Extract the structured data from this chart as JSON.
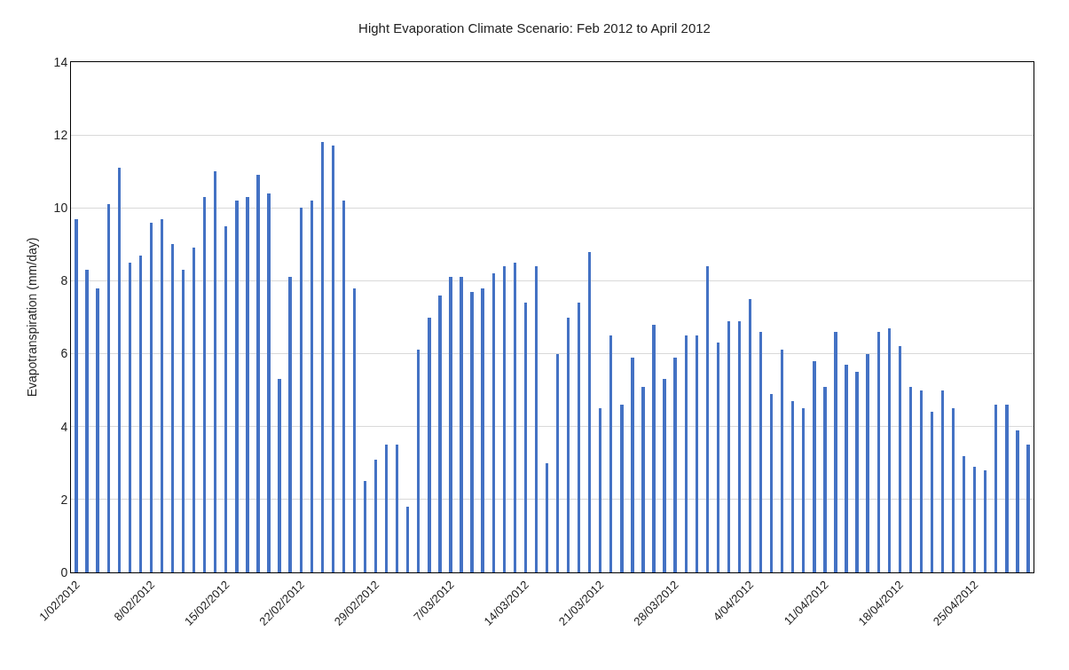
{
  "chart_data": {
    "type": "bar",
    "title": "Hight Evaporation Climate Scenario: Feb 2012 to April 2012",
    "ylabel": "Evapotranspiration (mm/day)",
    "x": [
      "2012-02-01",
      "2012-02-02",
      "2012-02-03",
      "2012-02-04",
      "2012-02-05",
      "2012-02-06",
      "2012-02-07",
      "2012-02-08",
      "2012-02-09",
      "2012-02-10",
      "2012-02-11",
      "2012-02-12",
      "2012-02-13",
      "2012-02-14",
      "2012-02-15",
      "2012-02-16",
      "2012-02-17",
      "2012-02-18",
      "2012-02-19",
      "2012-02-20",
      "2012-02-21",
      "2012-02-22",
      "2012-02-23",
      "2012-02-24",
      "2012-02-25",
      "2012-02-26",
      "2012-02-27",
      "2012-02-28",
      "2012-02-29",
      "2012-03-01",
      "2012-03-02",
      "2012-03-03",
      "2012-03-04",
      "2012-03-05",
      "2012-03-06",
      "2012-03-07",
      "2012-03-08",
      "2012-03-09",
      "2012-03-10",
      "2012-03-11",
      "2012-03-12",
      "2012-03-13",
      "2012-03-14",
      "2012-03-15",
      "2012-03-16",
      "2012-03-17",
      "2012-03-18",
      "2012-03-19",
      "2012-03-20",
      "2012-03-21",
      "2012-03-22",
      "2012-03-23",
      "2012-03-24",
      "2012-03-25",
      "2012-03-26",
      "2012-03-27",
      "2012-03-28",
      "2012-03-29",
      "2012-03-30",
      "2012-03-31",
      "2012-04-01",
      "2012-04-02",
      "2012-04-03",
      "2012-04-04",
      "2012-04-05",
      "2012-04-06",
      "2012-04-07",
      "2012-04-08",
      "2012-04-09",
      "2012-04-10",
      "2012-04-11",
      "2012-04-12",
      "2012-04-13",
      "2012-04-14",
      "2012-04-15",
      "2012-04-16",
      "2012-04-17",
      "2012-04-18",
      "2012-04-19",
      "2012-04-20",
      "2012-04-21",
      "2012-04-22",
      "2012-04-23",
      "2012-04-24",
      "2012-04-25",
      "2012-04-26",
      "2012-04-27",
      "2012-04-28",
      "2012-04-29",
      "2012-04-30"
    ],
    "values": [
      9.7,
      8.3,
      7.8,
      10.1,
      11.1,
      8.5,
      8.7,
      9.6,
      9.7,
      9.0,
      8.3,
      8.9,
      10.3,
      11.0,
      9.5,
      10.2,
      10.3,
      10.9,
      10.4,
      5.3,
      8.1,
      10.0,
      10.2,
      11.8,
      11.7,
      10.2,
      7.8,
      2.5,
      3.1,
      3.5,
      3.5,
      1.8,
      6.1,
      7.0,
      7.6,
      8.1,
      8.1,
      7.7,
      7.8,
      8.2,
      8.4,
      8.5,
      7.4,
      8.4,
      3.0,
      6.0,
      7.0,
      7.4,
      8.8,
      4.5,
      6.5,
      4.6,
      5.9,
      5.1,
      6.8,
      5.3,
      5.9,
      6.5,
      6.5,
      8.4,
      6.3,
      6.9,
      6.9,
      7.5,
      6.6,
      4.9,
      6.1,
      4.7,
      4.5,
      5.8,
      5.1,
      6.6,
      5.7,
      5.5,
      6.0,
      6.6,
      6.7,
      6.2,
      5.1,
      5.0,
      4.4,
      5.0,
      4.5,
      3.2,
      2.9,
      2.8,
      4.6,
      4.6,
      3.9,
      3.5
    ],
    "color": "#4472c4",
    "xlim": [
      "2012-01-31T12:00",
      "2012-04-30T12:00"
    ],
    "xticks": [
      {
        "value": "2012-02-01",
        "label": "1/02/2012"
      },
      {
        "value": "2012-02-08",
        "label": "8/02/2012"
      },
      {
        "value": "2012-02-15",
        "label": "15/02/2012"
      },
      {
        "value": "2012-02-22",
        "label": "22/02/2012"
      },
      {
        "value": "2012-02-29",
        "label": "29/02/2012"
      },
      {
        "value": "2012-03-07",
        "label": "7/03/2012"
      },
      {
        "value": "2012-03-14",
        "label": "14/03/2012"
      },
      {
        "value": "2012-03-21",
        "label": "21/03/2012"
      },
      {
        "value": "2012-03-28",
        "label": "28/03/2012"
      },
      {
        "value": "2012-04-04",
        "label": "4/04/2012"
      },
      {
        "value": "2012-04-11",
        "label": "11/04/2012"
      },
      {
        "value": "2012-04-18",
        "label": "18/04/2012"
      },
      {
        "value": "2012-04-25",
        "label": "25/04/2012"
      }
    ],
    "ylim": [
      0,
      14
    ],
    "yticks": [
      0,
      2,
      4,
      6,
      8,
      10,
      12,
      14
    ],
    "grid": "y"
  }
}
